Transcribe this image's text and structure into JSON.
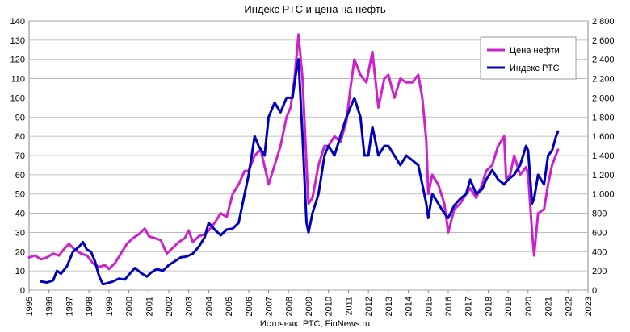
{
  "chart_data": {
    "type": "line",
    "title": "Индекс РТС и цена на нефть",
    "source": "Источник: РТС, FinNews.ru",
    "x_ticks": [
      "1995",
      "1996",
      "1997",
      "1998",
      "1999",
      "2000",
      "2001",
      "2002",
      "2003",
      "2004",
      "2005",
      "2006",
      "2007",
      "2008",
      "2009",
      "2010",
      "2011",
      "2012",
      "2013",
      "2014",
      "2015",
      "2016",
      "2017",
      "2018",
      "2019",
      "2020",
      "2021",
      "2022",
      "2023"
    ],
    "xlim": [
      1995,
      2023
    ],
    "y_left": {
      "ylim": [
        0,
        140
      ],
      "ticks": [
        "0",
        "10",
        "20",
        "30",
        "40",
        "50",
        "60",
        "70",
        "80",
        "90",
        "100",
        "110",
        "120",
        "130",
        "140"
      ]
    },
    "y_right": {
      "ylim": [
        0,
        2800
      ],
      "ticks": [
        "0",
        "200",
        "400",
        "600",
        "800",
        "1 000",
        "1 200",
        "1 400",
        "1 600",
        "1 800",
        "2 000",
        "2 200",
        "2 400",
        "2 600",
        "2 800"
      ]
    },
    "grid": true,
    "legend_position": "top-right",
    "series": [
      {
        "name": "Цена нефти",
        "axis": "left",
        "color": "#cc22cc",
        "points": [
          [
            1995.0,
            17
          ],
          [
            1995.3,
            18
          ],
          [
            1995.6,
            16
          ],
          [
            1995.9,
            17
          ],
          [
            1996.2,
            19
          ],
          [
            1996.5,
            18
          ],
          [
            1996.8,
            22
          ],
          [
            1997.0,
            24
          ],
          [
            1997.3,
            21
          ],
          [
            1997.6,
            19
          ],
          [
            1997.9,
            18
          ],
          [
            1998.2,
            14
          ],
          [
            1998.5,
            12
          ],
          [
            1998.8,
            13
          ],
          [
            1999.0,
            11
          ],
          [
            1999.3,
            14
          ],
          [
            1999.6,
            19
          ],
          [
            1999.9,
            24
          ],
          [
            2000.2,
            27
          ],
          [
            2000.5,
            29
          ],
          [
            2000.8,
            32
          ],
          [
            2001.0,
            28
          ],
          [
            2001.3,
            27
          ],
          [
            2001.6,
            26
          ],
          [
            2001.9,
            19
          ],
          [
            2002.2,
            22
          ],
          [
            2002.5,
            25
          ],
          [
            2002.8,
            27
          ],
          [
            2003.0,
            31
          ],
          [
            2003.2,
            25
          ],
          [
            2003.5,
            28
          ],
          [
            2003.8,
            29
          ],
          [
            2004.0,
            31
          ],
          [
            2004.3,
            35
          ],
          [
            2004.6,
            40
          ],
          [
            2004.9,
            38
          ],
          [
            2005.2,
            50
          ],
          [
            2005.5,
            55
          ],
          [
            2005.8,
            62
          ],
          [
            2006.0,
            62
          ],
          [
            2006.3,
            70
          ],
          [
            2006.6,
            73
          ],
          [
            2006.9,
            60
          ],
          [
            2007.0,
            55
          ],
          [
            2007.3,
            65
          ],
          [
            2007.6,
            75
          ],
          [
            2007.9,
            90
          ],
          [
            2008.1,
            95
          ],
          [
            2008.3,
            110
          ],
          [
            2008.5,
            133
          ],
          [
            2008.7,
            110
          ],
          [
            2008.9,
            65
          ],
          [
            2009.0,
            45
          ],
          [
            2009.2,
            48
          ],
          [
            2009.5,
            65
          ],
          [
            2009.8,
            75
          ],
          [
            2010.0,
            75
          ],
          [
            2010.3,
            80
          ],
          [
            2010.6,
            77
          ],
          [
            2010.9,
            88
          ],
          [
            2011.1,
            105
          ],
          [
            2011.3,
            120
          ],
          [
            2011.6,
            112
          ],
          [
            2011.9,
            108
          ],
          [
            2012.2,
            124
          ],
          [
            2012.5,
            95
          ],
          [
            2012.8,
            110
          ],
          [
            2013.0,
            112
          ],
          [
            2013.3,
            100
          ],
          [
            2013.6,
            110
          ],
          [
            2013.9,
            108
          ],
          [
            2014.2,
            108
          ],
          [
            2014.5,
            112
          ],
          [
            2014.7,
            100
          ],
          [
            2014.9,
            78
          ],
          [
            2015.0,
            50
          ],
          [
            2015.2,
            60
          ],
          [
            2015.5,
            55
          ],
          [
            2015.8,
            45
          ],
          [
            2016.0,
            30
          ],
          [
            2016.3,
            42
          ],
          [
            2016.6,
            45
          ],
          [
            2016.9,
            50
          ],
          [
            2017.1,
            53
          ],
          [
            2017.4,
            48
          ],
          [
            2017.7,
            55
          ],
          [
            2017.9,
            62
          ],
          [
            2018.2,
            65
          ],
          [
            2018.5,
            75
          ],
          [
            2018.8,
            80
          ],
          [
            2018.9,
            58
          ],
          [
            2019.1,
            60
          ],
          [
            2019.3,
            70
          ],
          [
            2019.6,
            60
          ],
          [
            2019.9,
            64
          ],
          [
            2020.0,
            60
          ],
          [
            2020.2,
            30
          ],
          [
            2020.3,
            18
          ],
          [
            2020.5,
            40
          ],
          [
            2020.8,
            42
          ],
          [
            2021.0,
            55
          ],
          [
            2021.2,
            65
          ],
          [
            2021.5,
            73
          ]
        ]
      },
      {
        "name": "Индекс РТС",
        "axis": "right",
        "color": "#0000bb",
        "points": [
          [
            1995.6,
            90
          ],
          [
            1995.9,
            80
          ],
          [
            1996.2,
            100
          ],
          [
            1996.4,
            200
          ],
          [
            1996.6,
            170
          ],
          [
            1996.9,
            250
          ],
          [
            1997.2,
            400
          ],
          [
            1997.5,
            450
          ],
          [
            1997.7,
            500
          ],
          [
            1997.9,
            420
          ],
          [
            1998.1,
            400
          ],
          [
            1998.3,
            300
          ],
          [
            1998.5,
            150
          ],
          [
            1998.7,
            60
          ],
          [
            1998.9,
            70
          ],
          [
            1999.2,
            90
          ],
          [
            1999.5,
            120
          ],
          [
            1999.8,
            110
          ],
          [
            2000.0,
            160
          ],
          [
            2000.3,
            230
          ],
          [
            2000.6,
            180
          ],
          [
            2000.9,
            140
          ],
          [
            2001.1,
            180
          ],
          [
            2001.4,
            220
          ],
          [
            2001.7,
            200
          ],
          [
            2002.0,
            260
          ],
          [
            2002.3,
            300
          ],
          [
            2002.6,
            340
          ],
          [
            2002.9,
            350
          ],
          [
            2003.2,
            380
          ],
          [
            2003.5,
            450
          ],
          [
            2003.8,
            550
          ],
          [
            2004.0,
            700
          ],
          [
            2004.3,
            630
          ],
          [
            2004.6,
            570
          ],
          [
            2004.9,
            630
          ],
          [
            2005.2,
            640
          ],
          [
            2005.5,
            700
          ],
          [
            2005.8,
            1000
          ],
          [
            2006.0,
            1200
          ],
          [
            2006.3,
            1600
          ],
          [
            2006.5,
            1500
          ],
          [
            2006.8,
            1400
          ],
          [
            2007.0,
            1800
          ],
          [
            2007.3,
            1950
          ],
          [
            2007.6,
            1850
          ],
          [
            2007.9,
            2000
          ],
          [
            2008.2,
            2000
          ],
          [
            2008.4,
            2300
          ],
          [
            2008.5,
            2400
          ],
          [
            2008.7,
            1600
          ],
          [
            2008.9,
            700
          ],
          [
            2009.0,
            600
          ],
          [
            2009.2,
            800
          ],
          [
            2009.5,
            1000
          ],
          [
            2009.8,
            1400
          ],
          [
            2010.0,
            1500
          ],
          [
            2010.3,
            1400
          ],
          [
            2010.6,
            1600
          ],
          [
            2010.9,
            1800
          ],
          [
            2011.1,
            1900
          ],
          [
            2011.3,
            2000
          ],
          [
            2011.6,
            1800
          ],
          [
            2011.8,
            1400
          ],
          [
            2012.0,
            1400
          ],
          [
            2012.2,
            1700
          ],
          [
            2012.5,
            1400
          ],
          [
            2012.8,
            1500
          ],
          [
            2013.0,
            1500
          ],
          [
            2013.3,
            1400
          ],
          [
            2013.6,
            1300
          ],
          [
            2013.9,
            1400
          ],
          [
            2014.2,
            1350
          ],
          [
            2014.5,
            1300
          ],
          [
            2014.7,
            1100
          ],
          [
            2014.9,
            900
          ],
          [
            2015.0,
            750
          ],
          [
            2015.2,
            1000
          ],
          [
            2015.5,
            900
          ],
          [
            2015.8,
            800
          ],
          [
            2016.0,
            750
          ],
          [
            2016.3,
            880
          ],
          [
            2016.6,
            950
          ],
          [
            2016.9,
            1000
          ],
          [
            2017.1,
            1150
          ],
          [
            2017.4,
            1000
          ],
          [
            2017.7,
            1050
          ],
          [
            2017.9,
            1150
          ],
          [
            2018.2,
            1250
          ],
          [
            2018.5,
            1150
          ],
          [
            2018.8,
            1100
          ],
          [
            2019.0,
            1150
          ],
          [
            2019.3,
            1200
          ],
          [
            2019.6,
            1300
          ],
          [
            2019.9,
            1500
          ],
          [
            2020.0,
            1450
          ],
          [
            2020.2,
            900
          ],
          [
            2020.3,
            950
          ],
          [
            2020.5,
            1200
          ],
          [
            2020.8,
            1100
          ],
          [
            2021.0,
            1400
          ],
          [
            2021.2,
            1450
          ],
          [
            2021.4,
            1600
          ],
          [
            2021.5,
            1650
          ]
        ]
      }
    ]
  }
}
